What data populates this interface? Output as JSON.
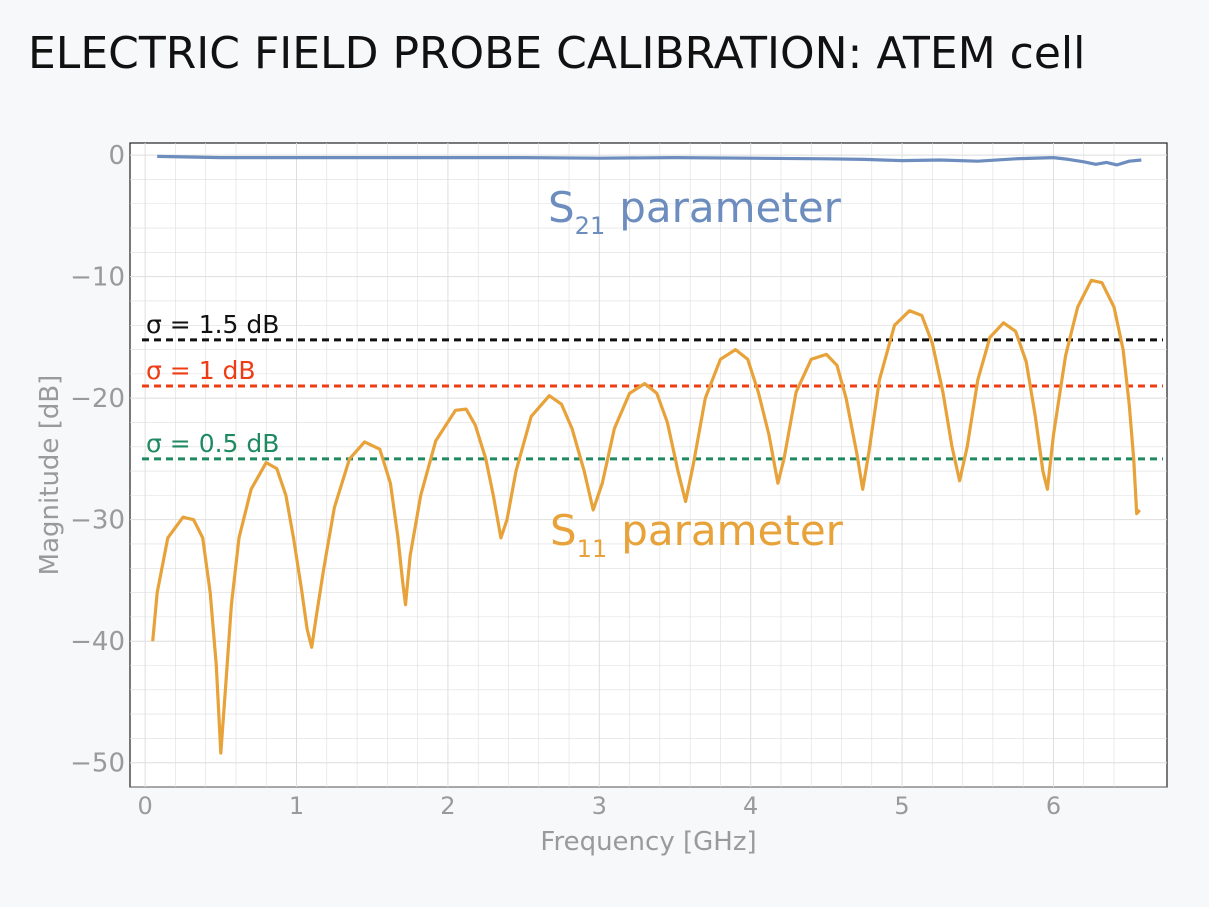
{
  "title": "ELECTRIC FIELD PROBE CALIBRATION: ATEM cell",
  "chart_data": {
    "type": "line",
    "title": "ELECTRIC FIELD PROBE CALIBRATION: ATEM cell",
    "xlabel": "Frequency",
    "xunit": "GHz",
    "ylabel": "Magnitude",
    "yunit": "dB",
    "xlim": [
      -0.1,
      6.75
    ],
    "ylim": [
      -52,
      1
    ],
    "xticks": [
      0,
      1,
      2,
      3,
      4,
      5,
      6
    ],
    "yticks": [
      0,
      -10,
      -20,
      -30,
      -40,
      -50
    ],
    "ytick_labels": [
      "0",
      "−10",
      "−20",
      "−30",
      "−40",
      "−50"
    ],
    "grid": true,
    "series": [
      {
        "name": "S21 parameter",
        "label_main": "S",
        "label_sub": "21",
        "label_rest": "parameter",
        "color": "#6d8dbf",
        "points": [
          [
            0.08,
            -0.1
          ],
          [
            0.5,
            -0.2
          ],
          [
            1.0,
            -0.2
          ],
          [
            1.5,
            -0.2
          ],
          [
            2.0,
            -0.2
          ],
          [
            2.5,
            -0.2
          ],
          [
            3.0,
            -0.25
          ],
          [
            3.5,
            -0.2
          ],
          [
            4.0,
            -0.25
          ],
          [
            4.5,
            -0.3
          ],
          [
            4.75,
            -0.35
          ],
          [
            5.0,
            -0.45
          ],
          [
            5.25,
            -0.4
          ],
          [
            5.5,
            -0.5
          ],
          [
            5.75,
            -0.3
          ],
          [
            6.0,
            -0.2
          ],
          [
            6.1,
            -0.35
          ],
          [
            6.2,
            -0.55
          ],
          [
            6.28,
            -0.75
          ],
          [
            6.35,
            -0.6
          ],
          [
            6.42,
            -0.8
          ],
          [
            6.5,
            -0.5
          ],
          [
            6.58,
            -0.4
          ]
        ]
      },
      {
        "name": "S11 parameter",
        "label_main": "S",
        "label_sub": "11",
        "label_rest": "parameter",
        "color": "#e8a23a",
        "points": [
          [
            0.05,
            -40
          ],
          [
            0.08,
            -36
          ],
          [
            0.15,
            -31.5
          ],
          [
            0.25,
            -29.8
          ],
          [
            0.32,
            -30
          ],
          [
            0.38,
            -31.5
          ],
          [
            0.43,
            -36
          ],
          [
            0.47,
            -42
          ],
          [
            0.5,
            -49.2
          ],
          [
            0.53,
            -44
          ],
          [
            0.57,
            -37
          ],
          [
            0.62,
            -31.5
          ],
          [
            0.7,
            -27.5
          ],
          [
            0.8,
            -25.3
          ],
          [
            0.87,
            -25.8
          ],
          [
            0.93,
            -28
          ],
          [
            0.98,
            -31.5
          ],
          [
            1.03,
            -35.5
          ],
          [
            1.07,
            -39
          ],
          [
            1.1,
            -40.5
          ],
          [
            1.13,
            -38
          ],
          [
            1.18,
            -34
          ],
          [
            1.25,
            -29
          ],
          [
            1.35,
            -25
          ],
          [
            1.45,
            -23.6
          ],
          [
            1.55,
            -24.2
          ],
          [
            1.62,
            -27
          ],
          [
            1.67,
            -31.5
          ],
          [
            1.7,
            -35
          ],
          [
            1.72,
            -37
          ],
          [
            1.75,
            -33
          ],
          [
            1.82,
            -28
          ],
          [
            1.92,
            -23.5
          ],
          [
            2.05,
            -21
          ],
          [
            2.12,
            -20.9
          ],
          [
            2.18,
            -22.2
          ],
          [
            2.25,
            -25
          ],
          [
            2.3,
            -28
          ],
          [
            2.35,
            -31.5
          ],
          [
            2.39,
            -30
          ],
          [
            2.45,
            -26
          ],
          [
            2.55,
            -21.5
          ],
          [
            2.67,
            -19.8
          ],
          [
            2.75,
            -20.5
          ],
          [
            2.82,
            -22.5
          ],
          [
            2.9,
            -26
          ],
          [
            2.96,
            -29.2
          ],
          [
            3.02,
            -27
          ],
          [
            3.1,
            -22.5
          ],
          [
            3.2,
            -19.6
          ],
          [
            3.3,
            -18.8
          ],
          [
            3.38,
            -19.6
          ],
          [
            3.45,
            -22
          ],
          [
            3.52,
            -26
          ],
          [
            3.57,
            -28.5
          ],
          [
            3.62,
            -25.5
          ],
          [
            3.7,
            -20
          ],
          [
            3.8,
            -16.8
          ],
          [
            3.9,
            -16
          ],
          [
            3.98,
            -16.8
          ],
          [
            4.05,
            -19.5
          ],
          [
            4.12,
            -23
          ],
          [
            4.18,
            -27
          ],
          [
            4.22,
            -25
          ],
          [
            4.3,
            -19.5
          ],
          [
            4.4,
            -16.8
          ],
          [
            4.5,
            -16.4
          ],
          [
            4.57,
            -17.3
          ],
          [
            4.63,
            -20
          ],
          [
            4.7,
            -24.5
          ],
          [
            4.74,
            -27.5
          ],
          [
            4.78,
            -24.5
          ],
          [
            4.85,
            -18.5
          ],
          [
            4.95,
            -14
          ],
          [
            5.05,
            -12.8
          ],
          [
            5.13,
            -13.2
          ],
          [
            5.2,
            -15.5
          ],
          [
            5.27,
            -19.5
          ],
          [
            5.33,
            -24
          ],
          [
            5.38,
            -26.8
          ],
          [
            5.43,
            -24
          ],
          [
            5.5,
            -18.5
          ],
          [
            5.58,
            -15
          ],
          [
            5.67,
            -13.8
          ],
          [
            5.75,
            -14.5
          ],
          [
            5.82,
            -17
          ],
          [
            5.88,
            -21.5
          ],
          [
            5.93,
            -26
          ],
          [
            5.96,
            -27.5
          ],
          [
            6.0,
            -23
          ],
          [
            6.08,
            -16.5
          ],
          [
            6.16,
            -12.5
          ],
          [
            6.25,
            -10.3
          ],
          [
            6.32,
            -10.5
          ],
          [
            6.4,
            -12.5
          ],
          [
            6.46,
            -16
          ],
          [
            6.5,
            -20.5
          ],
          [
            6.53,
            -25
          ],
          [
            6.55,
            -29.5
          ],
          [
            6.57,
            -29.2
          ]
        ]
      }
    ],
    "thresholds": [
      {
        "name": "sigma-1.5",
        "value": -15.2,
        "label_symbol": "σ",
        "label_text": "= 1.5 dB",
        "color": "#111111"
      },
      {
        "name": "sigma-1",
        "value": -19.0,
        "label_symbol": "σ",
        "label_text": "= 1 dB",
        "color": "#ee3c14"
      },
      {
        "name": "sigma-0.5",
        "value": -25.0,
        "label_symbol": "σ",
        "label_text": "= 0.5 dB",
        "color": "#1f8a62"
      }
    ],
    "axis_color": "#9a9a9a",
    "grid_color": "#dedede"
  }
}
